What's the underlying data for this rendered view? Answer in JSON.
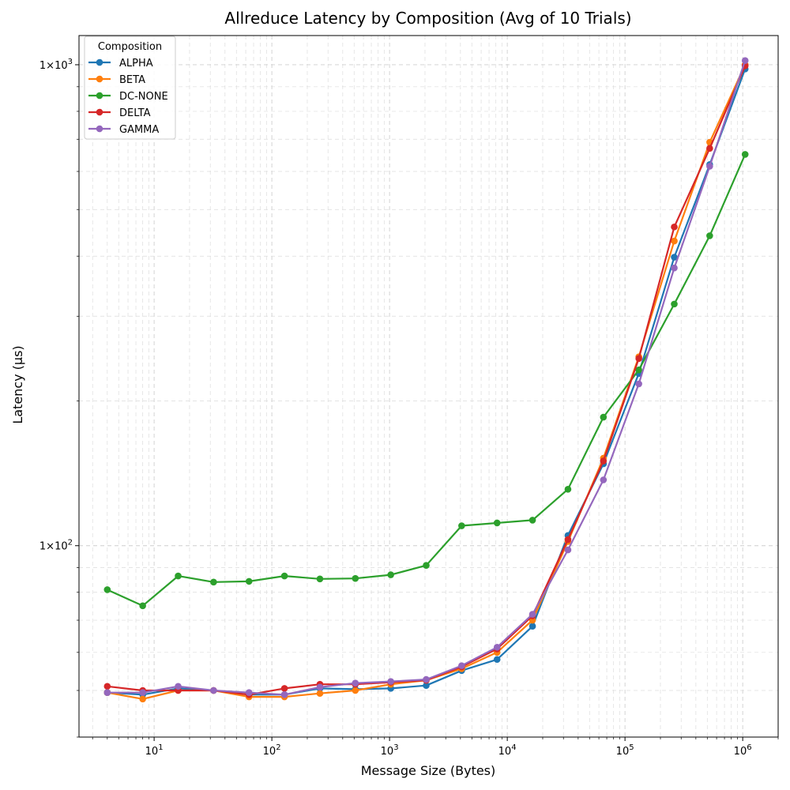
{
  "chart_data": {
    "type": "line",
    "title": "Allreduce Latency by Composition (Avg of 10 Trials)",
    "xlabel": "Message Size (Bytes)",
    "ylabel": "Latency (μs)",
    "xscale": "log",
    "yscale": "log",
    "xlim": [
      2.3,
      2000000
    ],
    "ylim": [
      40,
      1150
    ],
    "grid": true,
    "legend": {
      "title": "Composition",
      "placement": "top-left"
    },
    "x_ticks": [
      {
        "value": 10,
        "base": "10",
        "exp": "1"
      },
      {
        "value": 100,
        "base": "10",
        "exp": "2"
      },
      {
        "value": 1000,
        "base": "10",
        "exp": "3"
      },
      {
        "value": 10000,
        "base": "10",
        "exp": "4"
      },
      {
        "value": 100000,
        "base": "10",
        "exp": "5"
      },
      {
        "value": 1000000,
        "base": "10",
        "exp": "6"
      }
    ],
    "y_ticks": [
      {
        "value": 100,
        "coef": "1",
        "times": "×",
        "base": "10",
        "exp": "2"
      },
      {
        "value": 1000,
        "coef": "1",
        "times": "×",
        "base": "10",
        "exp": "3"
      }
    ],
    "x": [
      4,
      8,
      16,
      32,
      64,
      128,
      256,
      512,
      1024,
      2048,
      4096,
      8192,
      16384,
      32768,
      65536,
      131072,
      262144,
      524288,
      1048576
    ],
    "series": [
      {
        "name": "ALPHA",
        "color": "#1f77b4",
        "values": [
          49.5,
          49.0,
          50.5,
          50.0,
          49.0,
          49.0,
          50.5,
          50.3,
          50.5,
          51.2,
          55.0,
          58.0,
          68.0,
          105.0,
          148.0,
          228.0,
          398.0,
          620.0,
          980.0
        ]
      },
      {
        "name": "BETA",
        "color": "#ff7f0e",
        "values": [
          49.5,
          48.0,
          50.0,
          50.0,
          48.5,
          48.5,
          49.3,
          50.0,
          51.5,
          52.5,
          55.5,
          60.0,
          70.0,
          102.0,
          152.0,
          247.0,
          430.0,
          690.0,
          1000.0
        ]
      },
      {
        "name": "DC-NONE",
        "color": "#2ca02c",
        "values": [
          81.0,
          75.0,
          86.5,
          84.0,
          84.3,
          86.5,
          85.3,
          85.5,
          87.0,
          91.0,
          110.0,
          111.5,
          113.0,
          131.0,
          185.0,
          232.0,
          318.0,
          441.0,
          651.0
        ]
      },
      {
        "name": "DELTA",
        "color": "#d62728",
        "values": [
          51.0,
          50.0,
          50.0,
          50.0,
          49.0,
          50.5,
          51.5,
          51.5,
          52.0,
          52.5,
          56.0,
          61.0,
          71.5,
          103.0,
          150.0,
          245.0,
          460.0,
          670.0,
          995.0
        ]
      },
      {
        "name": "GAMMA",
        "color": "#9467bd",
        "values": [
          49.5,
          49.5,
          51.0,
          50.0,
          49.5,
          49.0,
          50.8,
          51.8,
          52.2,
          52.7,
          56.3,
          61.5,
          72.0,
          98.0,
          137.0,
          217.0,
          378.0,
          615.0,
          1020.0
        ]
      }
    ]
  }
}
